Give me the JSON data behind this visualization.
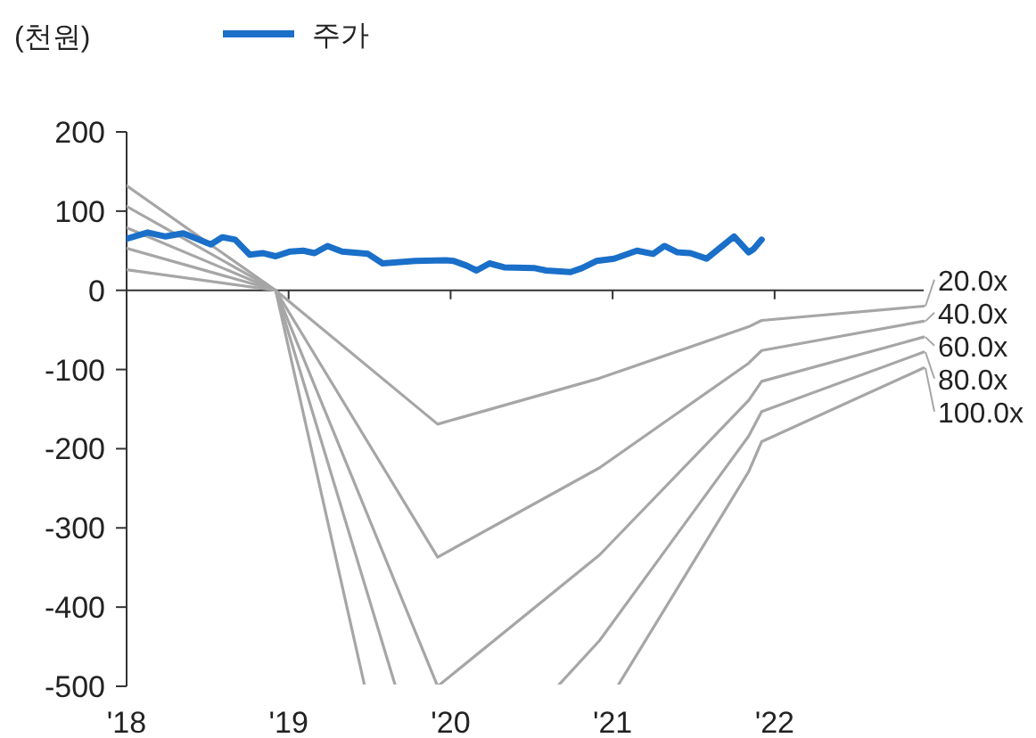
{
  "chart_data": {
    "type": "line",
    "ylabel": "(천원)",
    "legend": "top",
    "xlim": [
      2018,
      2022.92
    ],
    "xticks": [
      {
        "value": 2018,
        "label": "'18"
      },
      {
        "value": 2019,
        "label": "'19"
      },
      {
        "value": 2020,
        "label": "'20"
      },
      {
        "value": 2021,
        "label": "'21"
      },
      {
        "value": 2022,
        "label": "'22"
      }
    ],
    "ylim": [
      -500,
      200
    ],
    "yticks": [
      -500,
      -400,
      -300,
      -200,
      -100,
      0,
      100,
      200
    ],
    "series": [
      {
        "name": "100.0x",
        "color": "#a6a6a6",
        "x": [
          2018,
          2018.92,
          2019.47,
          2021.03,
          2021.84,
          2021.92,
          2022.92
        ],
        "values": [
          132,
          0,
          -500,
          -500,
          -229,
          -191,
          -98
        ]
      },
      {
        "name": "80.0x",
        "color": "#a6a6a6",
        "x": [
          2018,
          2018.92,
          2019.66,
          2020.66,
          2020.92,
          2021.84,
          2021.92,
          2022.92
        ],
        "values": [
          106,
          0,
          -500,
          -500,
          -442,
          -184,
          -153,
          -78
        ]
      },
      {
        "name": "60.0x",
        "color": "#a6a6a6",
        "x": [
          2018,
          2018.92,
          2019.92,
          2020.92,
          2021.84,
          2021.92,
          2022.92
        ],
        "values": [
          79,
          0,
          -500,
          -334,
          -139,
          -115,
          -59
        ]
      },
      {
        "name": "40.0x",
        "color": "#a6a6a6",
        "x": [
          2018,
          2018.92,
          2019.92,
          2020.92,
          2021.84,
          2021.92,
          2022.92
        ],
        "values": [
          53,
          0,
          -337,
          -224,
          -92,
          -76,
          -39
        ]
      },
      {
        "name": "20.0x",
        "color": "#a6a6a6",
        "x": [
          2018,
          2018.92,
          2019.92,
          2020.92,
          2021.84,
          2021.92,
          2022.92
        ],
        "values": [
          26,
          0,
          -169,
          -111,
          -46,
          -38,
          -20
        ]
      },
      {
        "name": "주가",
        "color": "#1a6fc9",
        "x": [
          2018,
          2018.13,
          2018.24,
          2018.35,
          2018.52,
          2018.59,
          2018.67,
          2018.76,
          2018.84,
          2018.92,
          2019.01,
          2019.09,
          2019.16,
          2019.24,
          2019.33,
          2019.49,
          2019.58,
          2019.78,
          2019.97,
          2020.02,
          2020.1,
          2020.16,
          2020.24,
          2020.33,
          2020.52,
          2020.59,
          2020.74,
          2020.81,
          2020.9,
          2021.01,
          2021.15,
          2021.25,
          2021.32,
          2021.4,
          2021.48,
          2021.58,
          2021.75,
          2021.84,
          2021.87,
          2021.92
        ],
        "values": [
          65,
          73,
          68,
          72,
          58,
          67,
          64,
          45,
          47,
          43,
          49,
          50,
          47,
          56,
          49,
          46,
          34,
          37,
          38,
          37,
          31,
          25,
          34,
          29,
          28,
          25,
          23,
          28,
          37,
          40,
          50,
          46,
          56,
          48,
          47,
          40,
          68,
          48,
          52,
          64
        ]
      }
    ]
  }
}
